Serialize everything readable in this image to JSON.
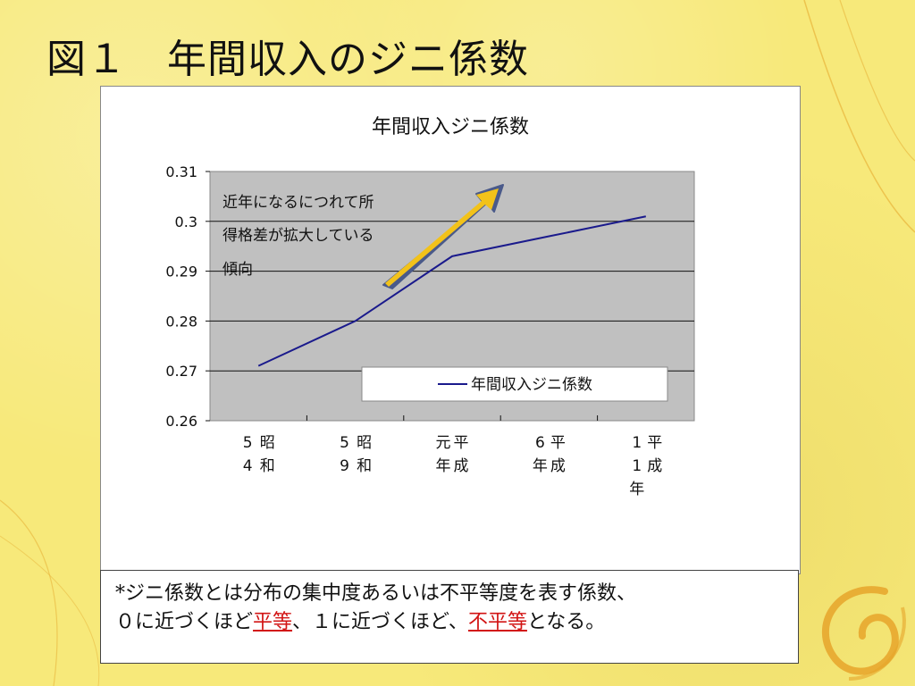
{
  "slide": {
    "title": "図１　年間収入のジニ係数"
  },
  "chart_data": {
    "type": "line",
    "title": "年間収入ジニ係数",
    "categories": [
      "昭和54年",
      "昭和59年",
      "平成元年",
      "平成6年",
      "平成11年"
    ],
    "series": [
      {
        "name": "年間収入ジニ係数",
        "values": [
          0.271,
          0.28,
          0.293,
          0.297,
          0.301
        ],
        "color": "#1a1a8c"
      }
    ],
    "y_ticks": [
      "0.31",
      "0.3",
      "0.29",
      "0.28",
      "0.27",
      "0.26"
    ],
    "ylim": [
      0.26,
      0.31
    ],
    "grid": true,
    "plot_background": "#c0c0c0",
    "legend_position": "bottom-right (inside plot)",
    "annotation": {
      "lines": [
        "近年になるにつれて所",
        "得格差が拡大している",
        "傾向"
      ],
      "arrow_color": "#f2c21a",
      "arrow_outline": "#4a5a8a"
    }
  },
  "note": {
    "line1": "*ジニ係数とは分布の集中度あるいは不平等度を表す係数、",
    "line2_before": "０に近づくほど",
    "line2_red1": "平等",
    "line2_middle": "、１に近づくほど、",
    "line2_red2": "不平等",
    "line2_after": "となる。",
    "accent_color": "#d21414"
  }
}
